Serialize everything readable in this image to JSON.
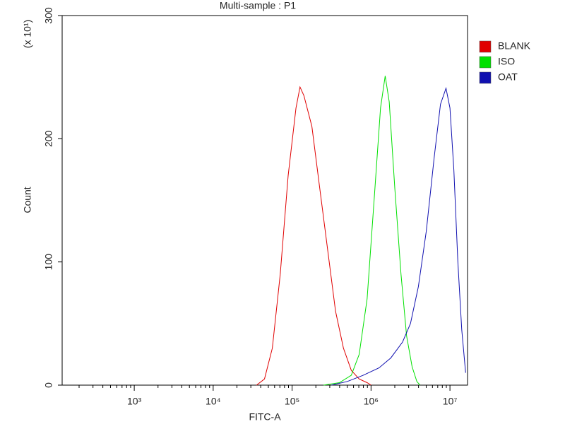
{
  "chart_data": {
    "type": "line",
    "title": "Multi-sample : P1",
    "x_label": "FITC-A",
    "y_label": "Count",
    "y_multiplier": "(x 10¹)",
    "log_x": true,
    "xlim": [
      122,
      16700000
    ],
    "ylim": [
      0,
      300
    ],
    "xticks": [
      {
        "value": 1000,
        "label": "10³"
      },
      {
        "value": 10000,
        "label": "10⁴"
      },
      {
        "value": 100000,
        "label": "10⁵"
      },
      {
        "value": 1000000,
        "label": "10⁶"
      },
      {
        "value": 10000000,
        "label": "10⁷"
      }
    ],
    "yticks": [
      0,
      100,
      200,
      300
    ],
    "legend": "right",
    "series": [
      {
        "name": "BLANK",
        "color": "#e00000",
        "x": [
          35500,
          44700,
          56200,
          70800,
          89100,
          112000,
          126000,
          141000,
          178000,
          224000,
          282000,
          355000,
          447000,
          562000,
          708000,
          891000,
          1000000
        ],
        "values": [
          0,
          5,
          30,
          90,
          170,
          225,
          242,
          235,
          210,
          160,
          110,
          60,
          30,
          12,
          5,
          2,
          0
        ]
      },
      {
        "name": "ISO",
        "color": "#00e000",
        "x": [
          251000,
          398000,
          562000,
          708000,
          891000,
          1120000,
          1320000,
          1510000,
          1700000,
          2000000,
          2400000,
          2820000,
          3310000,
          3800000,
          4170000
        ],
        "values": [
          0,
          2,
          8,
          25,
          70,
          160,
          225,
          251,
          230,
          160,
          90,
          40,
          15,
          3,
          0
        ]
      },
      {
        "name": "OAT",
        "color": "#1010b0",
        "x": [
          316000,
          501000,
          794000,
          1260000,
          1780000,
          2510000,
          3160000,
          3980000,
          5010000,
          6310000,
          7590000,
          8910000,
          10000000,
          11200000,
          12600000,
          14100000,
          15800000
        ],
        "values": [
          0,
          3,
          8,
          14,
          22,
          35,
          50,
          80,
          125,
          185,
          228,
          241,
          225,
          175,
          100,
          45,
          10
        ]
      }
    ]
  }
}
